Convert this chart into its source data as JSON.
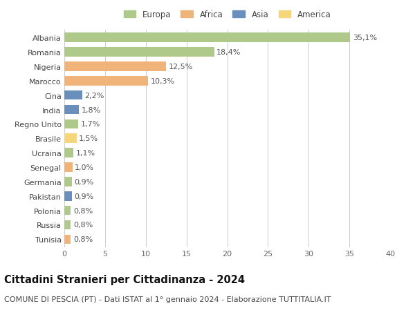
{
  "categories": [
    "Albania",
    "Romania",
    "Nigeria",
    "Marocco",
    "Cina",
    "India",
    "Regno Unito",
    "Brasile",
    "Ucraina",
    "Senegal",
    "Germania",
    "Pakistan",
    "Polonia",
    "Russia",
    "Tunisia"
  ],
  "values": [
    35.1,
    18.4,
    12.5,
    10.3,
    2.2,
    1.8,
    1.7,
    1.5,
    1.1,
    1.0,
    0.9,
    0.9,
    0.8,
    0.8,
    0.8
  ],
  "labels": [
    "35,1%",
    "18,4%",
    "12,5%",
    "10,3%",
    "2,2%",
    "1,8%",
    "1,7%",
    "1,5%",
    "1,1%",
    "1,0%",
    "0,9%",
    "0,9%",
    "0,8%",
    "0,8%",
    "0,8%"
  ],
  "colors": [
    "#aec98a",
    "#aec98a",
    "#f0b47a",
    "#f0b47a",
    "#6a8fbd",
    "#6a8fbd",
    "#aec98a",
    "#f5d67a",
    "#aec98a",
    "#f0b47a",
    "#aec98a",
    "#6a8fbd",
    "#aec98a",
    "#aec98a",
    "#f0b47a"
  ],
  "legend_labels": [
    "Europa",
    "Africa",
    "Asia",
    "America"
  ],
  "legend_colors": [
    "#aec98a",
    "#f0b47a",
    "#6a8fbd",
    "#f5d67a"
  ],
  "xlim": [
    0,
    40
  ],
  "xticks": [
    0,
    5,
    10,
    15,
    20,
    25,
    30,
    35,
    40
  ],
  "title": "Cittadini Stranieri per Cittadinanza - 2024",
  "subtitle": "COMUNE DI PESCIA (PT) - Dati ISTAT al 1° gennaio 2024 - Elaborazione TUTTITALIA.IT",
  "bg_color": "#ffffff",
  "grid_color": "#cccccc",
  "bar_height": 0.65,
  "title_fontsize": 10.5,
  "subtitle_fontsize": 8,
  "label_fontsize": 8,
  "tick_fontsize": 8,
  "legend_fontsize": 8.5
}
